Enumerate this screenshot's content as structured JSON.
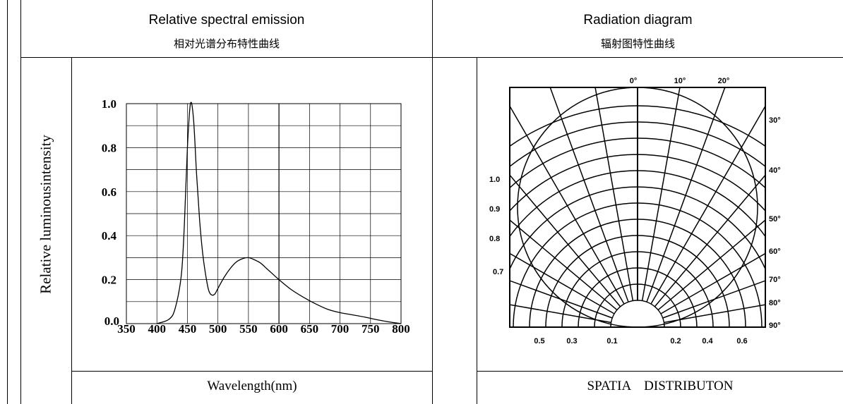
{
  "spectral_header": {
    "title_en": "Relative spectral emission",
    "title_zh": "相对光谱分布特性曲线"
  },
  "radiation_header": {
    "title_en": "Radiation diagram",
    "title_zh": "辐射图特性曲线"
  },
  "spectral_footer": "Wavelength(nm)",
  "radiation_footer": "SPATIA    DISTRIBUTON",
  "chart_data": [
    {
      "type": "line",
      "title": "Relative spectral emission",
      "xlabel": "Wavelength(nm)",
      "ylabel": "Relative luminousintensity",
      "xlim": [
        350,
        800
      ],
      "ylim": [
        0,
        1.0
      ],
      "x_ticks": [
        350,
        400,
        450,
        500,
        550,
        600,
        650,
        700,
        750,
        800
      ],
      "y_ticks": [
        0.0,
        0.2,
        0.4,
        0.6,
        0.8,
        1.0
      ],
      "y_tick_labels": [
        "0.0",
        "0.2",
        "0.4",
        "0.6",
        "0.8",
        "1.0"
      ],
      "grid": true,
      "series": [
        {
          "x": [
            400,
            420,
            430,
            440,
            445,
            450,
            455,
            460,
            465,
            470,
            475,
            480,
            485,
            490,
            495,
            500,
            510,
            520,
            530,
            540,
            550,
            560,
            570,
            580,
            590,
            600,
            620,
            640,
            660,
            680,
            700,
            720,
            740,
            760,
            780,
            800
          ],
          "y": [
            0.0,
            0.02,
            0.07,
            0.22,
            0.45,
            0.8,
            1.0,
            0.93,
            0.68,
            0.47,
            0.32,
            0.22,
            0.15,
            0.13,
            0.135,
            0.16,
            0.21,
            0.25,
            0.28,
            0.295,
            0.3,
            0.29,
            0.275,
            0.25,
            0.225,
            0.2,
            0.155,
            0.12,
            0.09,
            0.065,
            0.05,
            0.04,
            0.03,
            0.018,
            0.008,
            0.0
          ]
        }
      ]
    },
    {
      "type": "polar",
      "title": "Radiation diagram",
      "xlabel": "SPATIA    DISTRIBUTON",
      "angle_ticks": [
        "0°",
        "10°",
        "20°",
        "30°",
        "40°",
        "50°",
        "60°",
        "70°",
        "80°",
        "90°"
      ],
      "radial_ticks_left": [
        "1.0",
        "0.9",
        "0.8",
        "0.7"
      ],
      "bottom_ticks": [
        "0.5",
        "0.3",
        "0.1",
        "0.1",
        "0.2",
        "0.4",
        "0.6"
      ],
      "grid": true
    }
  ]
}
